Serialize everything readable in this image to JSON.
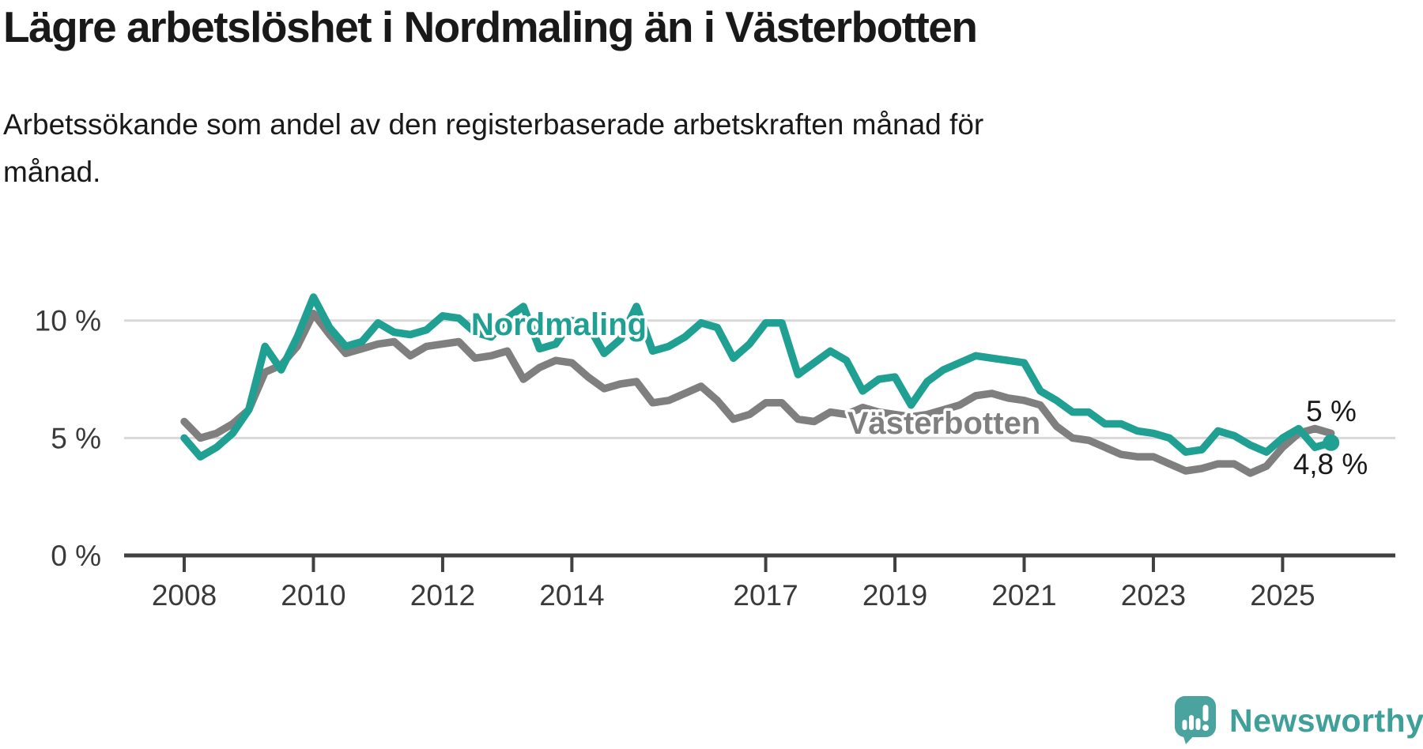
{
  "header": {
    "title": "Lägre arbetslöshet i Nordmaling än i Västerbotten",
    "subtitle": "Arbetssökande som andel av den registerbaserade arbetskraften månad för månad."
  },
  "footer": {
    "brand": "Newsworthy"
  },
  "colors": {
    "nordmaling": "#1FA093",
    "vasterbotten": "#7F7F7F",
    "text": "#191919",
    "axis": "#404040",
    "gridline": "#D8D8D8",
    "logo_icon": "#4AA39E",
    "logo_text": "#3FA099"
  },
  "chart_data": {
    "type": "line",
    "unit": "percent",
    "title": "Lägre arbetslöshet i Nordmaling än i Västerbotten",
    "subtitle": "Arbetssökande som andel av den registerbaserade arbetskraften månad för månad.",
    "x_start": 2008.0,
    "x_step_years": 0.25,
    "xlim": [
      2007.1,
      2026.7
    ],
    "ylim": [
      0,
      11.5
    ],
    "grid": "horizontal-only",
    "legend_position": "inline-labels",
    "x_ticks": [
      {
        "label": "2008",
        "year": 2008
      },
      {
        "label": "2010",
        "year": 2010
      },
      {
        "label": "2012",
        "year": 2012
      },
      {
        "label": "2014",
        "year": 2014
      },
      {
        "label": "2017",
        "year": 2017
      },
      {
        "label": "2019",
        "year": 2019
      },
      {
        "label": "2021",
        "year": 2021
      },
      {
        "label": "2023",
        "year": 2023
      },
      {
        "label": "2025",
        "year": 2025
      }
    ],
    "y_ticks": [
      {
        "label": "0 %",
        "value": 0
      },
      {
        "label": "5 %",
        "value": 5
      },
      {
        "label": "10 %",
        "value": 10
      }
    ],
    "series": [
      {
        "id": "vasterbotten",
        "name": "Västerbotten",
        "color": "#7F7F7F",
        "end_label": "5 %",
        "end_dot": false,
        "values": [
          5.7,
          5.0,
          5.2,
          5.6,
          6.2,
          7.8,
          8.1,
          8.9,
          10.3,
          9.4,
          8.6,
          8.8,
          9.0,
          9.1,
          8.5,
          8.9,
          9.0,
          9.1,
          8.4,
          8.5,
          8.7,
          7.5,
          8.0,
          8.3,
          8.2,
          7.6,
          7.1,
          7.3,
          7.4,
          6.5,
          6.6,
          6.9,
          7.2,
          6.6,
          5.8,
          6.0,
          6.5,
          6.5,
          5.8,
          5.7,
          6.1,
          6.0,
          6.3,
          6.1,
          6.0,
          5.9,
          6.0,
          6.2,
          6.4,
          6.8,
          6.9,
          6.7,
          6.6,
          6.4,
          5.5,
          5.0,
          4.9,
          4.6,
          4.3,
          4.2,
          4.2,
          3.9,
          3.6,
          3.7,
          3.9,
          3.9,
          3.5,
          3.8,
          4.6,
          5.2,
          5.4,
          5.2
        ]
      },
      {
        "id": "nordmaling",
        "name": "Nordmaling",
        "color": "#1FA093",
        "end_label": "4,8 %",
        "end_dot": true,
        "values": [
          5.0,
          4.2,
          4.6,
          5.2,
          6.2,
          8.9,
          7.9,
          9.3,
          11.0,
          9.7,
          8.9,
          9.1,
          9.9,
          9.5,
          9.4,
          9.6,
          10.2,
          10.1,
          9.5,
          9.3,
          10.1,
          10.6,
          8.8,
          9.0,
          10.0,
          9.8,
          8.6,
          9.2,
          10.6,
          8.7,
          8.9,
          9.3,
          9.9,
          9.7,
          8.4,
          9.0,
          9.9,
          9.9,
          7.7,
          8.2,
          8.7,
          8.3,
          7.0,
          7.5,
          7.6,
          6.4,
          7.4,
          7.9,
          8.2,
          8.5,
          8.4,
          8.3,
          8.2,
          7.0,
          6.6,
          6.1,
          6.1,
          5.6,
          5.6,
          5.3,
          5.2,
          5.0,
          4.4,
          4.5,
          5.3,
          5.1,
          4.7,
          4.4,
          5.0,
          5.4,
          4.6,
          4.8
        ]
      }
    ]
  }
}
